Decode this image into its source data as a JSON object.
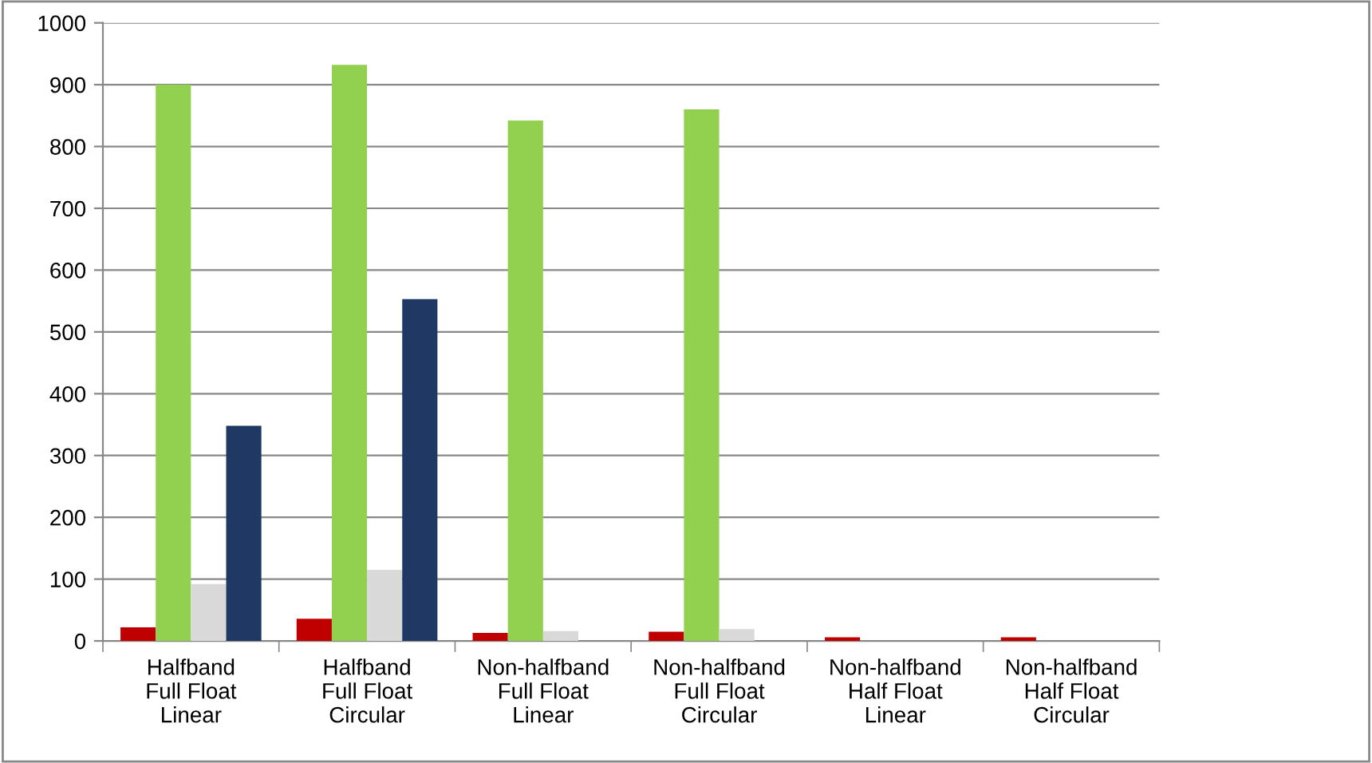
{
  "chart_data": {
    "type": "bar",
    "categories": [
      "Halfband\nFull Float\nLinear",
      "Halfband\nFull Float\nCircular",
      "Non-halfband\nFull Float\nLinear",
      "Non-halfband\nFull Float\nCircular",
      "Non-halfband\nHalf Float\nLinear",
      "Non-halfband\nHalf Float\nCircular"
    ],
    "series": [
      {
        "color": "#c00000",
        "values": [
          22,
          36,
          13,
          15,
          6,
          6
        ]
      },
      {
        "color": "#92d050",
        "values": [
          900,
          932,
          842,
          860,
          null,
          null
        ]
      },
      {
        "color": "#d9d9d9",
        "values": [
          92,
          115,
          16,
          19,
          null,
          null
        ]
      },
      {
        "color": "#1f3864",
        "values": [
          348,
          553,
          null,
          null,
          null,
          null
        ]
      }
    ],
    "ylim": [
      0,
      1000
    ],
    "yticks": [
      0,
      100,
      200,
      300,
      400,
      500,
      600,
      700,
      800,
      900,
      1000
    ],
    "grid": "y"
  }
}
